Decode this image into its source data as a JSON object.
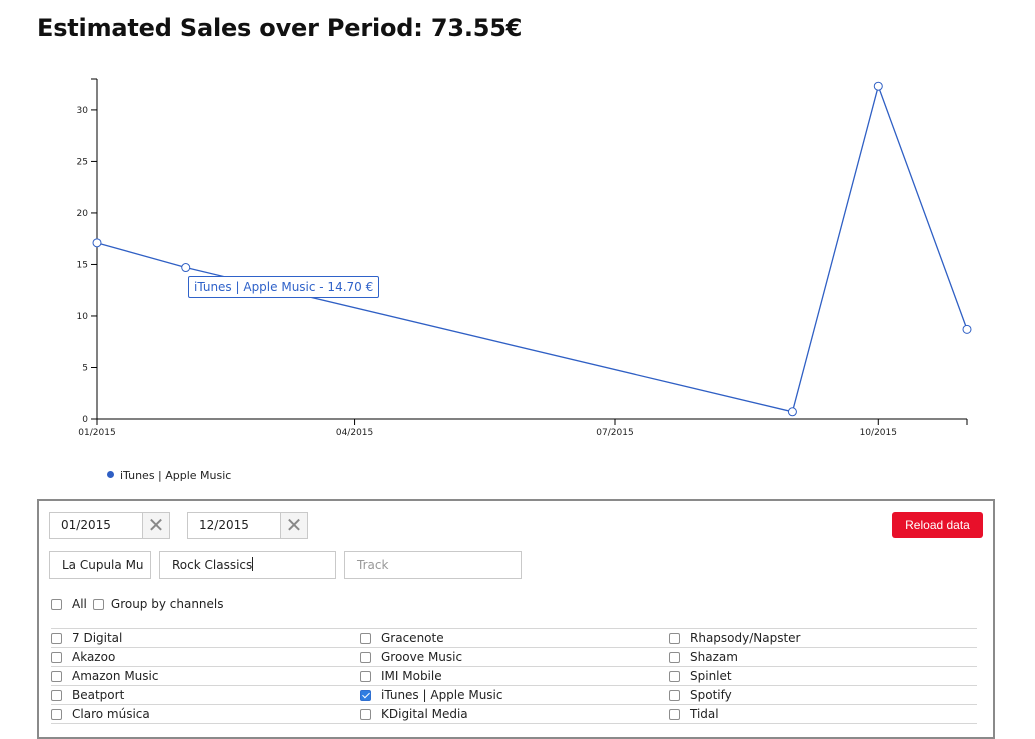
{
  "header": {
    "title": "Estimated Sales over Period: 73.55€"
  },
  "chart_data": {
    "type": "line",
    "series": [
      {
        "name": "iTunes | Apple Music",
        "color": "#2f5fc4",
        "points": [
          {
            "x": "2015-01-01",
            "y": 17.1
          },
          {
            "x": "2015-02-01",
            "y": 14.7
          },
          {
            "x": "2015-09-01",
            "y": 0.7
          },
          {
            "x": "2015-10-01",
            "y": 32.3
          },
          {
            "x": "2015-11-01",
            "y": 8.7
          }
        ]
      }
    ],
    "xlim": [
      "2015-01-01",
      "2015-11-01"
    ],
    "ylim": [
      0,
      33
    ],
    "x_ticks": [
      {
        "x": "2015-01-01",
        "label": "01/2015"
      },
      {
        "x": "2015-04-01",
        "label": "04/2015"
      },
      {
        "x": "2015-07-01",
        "label": "07/2015"
      },
      {
        "x": "2015-10-01",
        "label": "10/2015"
      }
    ],
    "y_ticks": [
      0,
      5,
      10,
      15,
      20,
      25,
      30
    ],
    "grid": false,
    "tooltip": "iTunes | Apple Music - 14.70 €",
    "legend_position": "bottom-left"
  },
  "legend": {
    "label": "iTunes | Apple Music",
    "color": "#2f5fc4"
  },
  "filters": {
    "date_from": "01/2015",
    "date_to": "12/2015",
    "clear_symbol": "✕",
    "reload_label": "Reload data",
    "label_value": "La Cupula Mu",
    "album_value": "Rock Classics",
    "track_placeholder": "Track",
    "all_label": "All",
    "group_label": "Group by channels",
    "all_checked": false,
    "group_checked": false
  },
  "channels": [
    {
      "label": "7 Digital",
      "checked": false
    },
    {
      "label": "Gracenote",
      "checked": false
    },
    {
      "label": "Rhapsody/Napster",
      "checked": false
    },
    {
      "label": "Akazoo",
      "checked": false
    },
    {
      "label": "Groove Music",
      "checked": false
    },
    {
      "label": "Shazam",
      "checked": false
    },
    {
      "label": "Amazon Music",
      "checked": false
    },
    {
      "label": "IMI Mobile",
      "checked": false
    },
    {
      "label": "Spinlet",
      "checked": false
    },
    {
      "label": "Beatport",
      "checked": false
    },
    {
      "label": "iTunes | Apple Music",
      "checked": true
    },
    {
      "label": "Spotify",
      "checked": false
    },
    {
      "label": "Claro música",
      "checked": false
    },
    {
      "label": "KDigital Media",
      "checked": false
    },
    {
      "label": "Tidal",
      "checked": false
    }
  ]
}
